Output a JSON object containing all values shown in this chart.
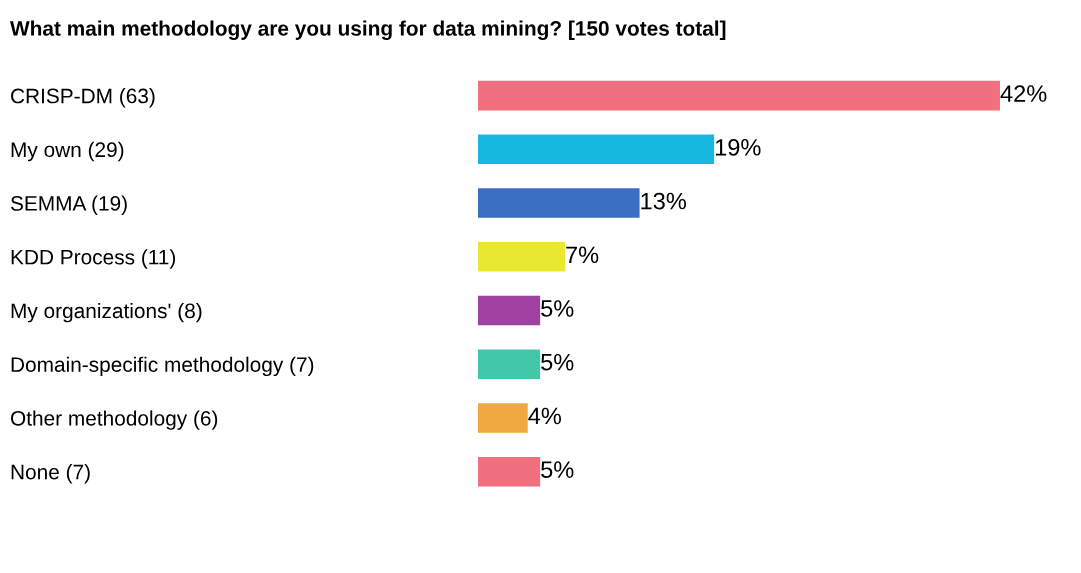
{
  "chart_data": {
    "type": "bar",
    "orientation": "horizontal",
    "title": "What main methodology are you using for data mining? [150 votes total]",
    "categories": [
      "CRISP-DM (63)",
      "My own (29)",
      "SEMMA (19)",
      "KDD Process (11)",
      "My organizations' (8)",
      "Domain-specific methodology (7)",
      "Other methodology (6)",
      "None (7)"
    ],
    "values": [
      42,
      19,
      13,
      7,
      5,
      5,
      4,
      5
    ],
    "value_labels": [
      "42%",
      "19%",
      "13%",
      "7%",
      "5%",
      "5%",
      "4%",
      "5%"
    ],
    "colors": [
      "#f07080",
      "#17b8e0",
      "#3a6fc4",
      "#e8e830",
      "#a040a0",
      "#40c8a8",
      "#f0a840",
      "#f07080"
    ],
    "grid": false,
    "legend": false
  }
}
